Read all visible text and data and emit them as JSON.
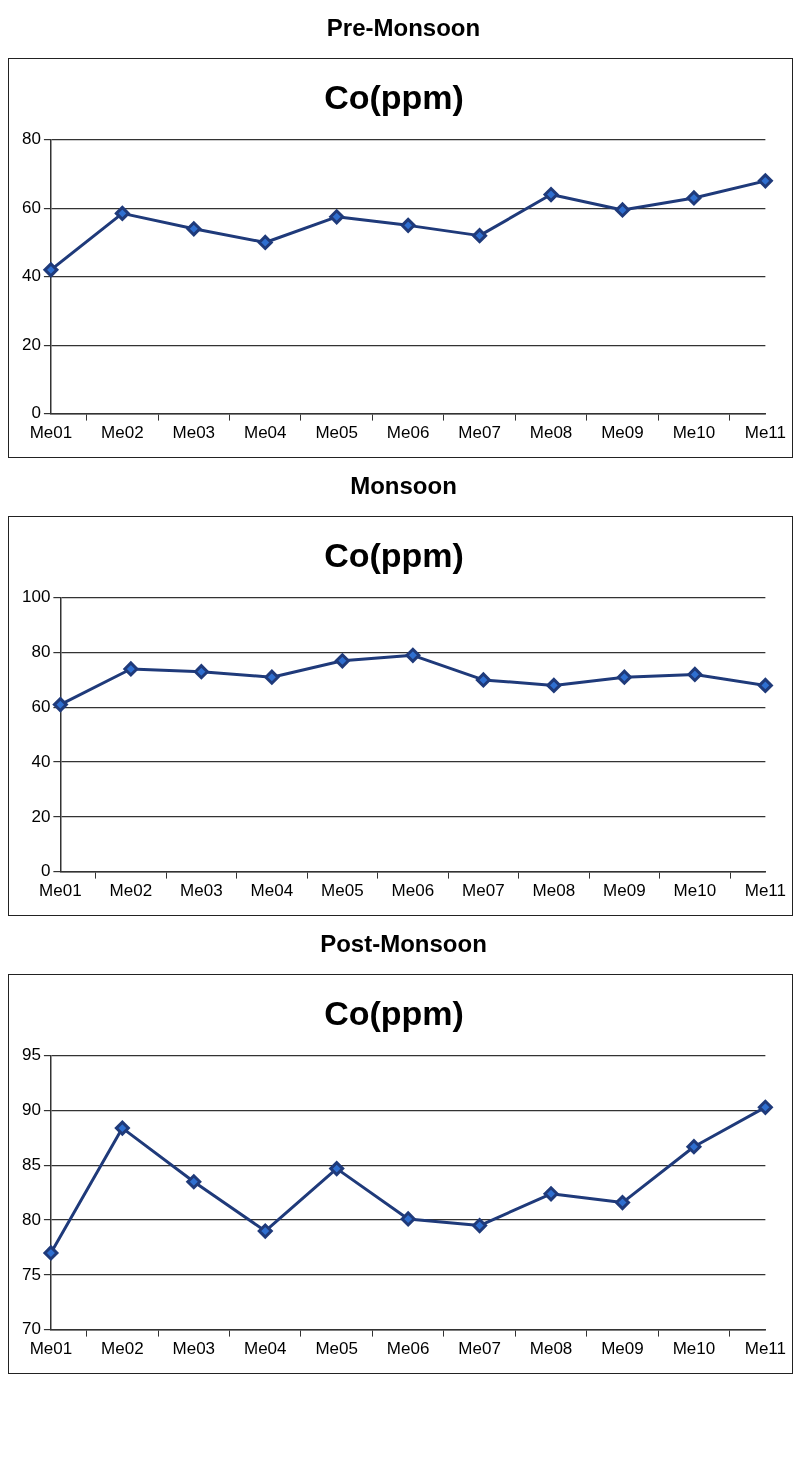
{
  "chart_data": [
    {
      "type": "line",
      "title": "Pre-Monsoon",
      "subtitle": "Co(ppm)",
      "categories": [
        "Me01",
        "Me02",
        "Me03",
        "Me04",
        "Me05",
        "Me06",
        "Me07",
        "Me08",
        "Me09",
        "Me10",
        "Me11"
      ],
      "series": [
        {
          "color": "#1f3a7a",
          "values": [
            42,
            58.5,
            54,
            50,
            57.5,
            55,
            52,
            64,
            59.5,
            63,
            68
          ]
        }
      ],
      "ylim": [
        0,
        80
      ],
      "yticks": [
        0,
        20,
        40,
        60,
        80
      ],
      "grid": "y",
      "legend": false,
      "marker": "diamond",
      "line_style": "solid"
    },
    {
      "type": "line",
      "title": "Monsoon",
      "subtitle": "Co(ppm)",
      "categories": [
        "Me01",
        "Me02",
        "Me03",
        "Me04",
        "Me05",
        "Me06",
        "Me07",
        "Me08",
        "Me09",
        "Me10",
        "Me11"
      ],
      "series": [
        {
          "color": "#1f3a7a",
          "values": [
            61,
            74,
            73,
            71,
            77,
            79,
            70,
            68,
            71,
            72,
            68
          ]
        }
      ],
      "ylim": [
        0,
        100
      ],
      "yticks": [
        0,
        20,
        40,
        60,
        80,
        100
      ],
      "grid": "y",
      "legend": false,
      "marker": "diamond",
      "line_style": "solid"
    },
    {
      "type": "line",
      "title": "Post-Monsoon",
      "subtitle": "Co(ppm)",
      "categories": [
        "Me01",
        "Me02",
        "Me03",
        "Me04",
        "Me05",
        "Me06",
        "Me07",
        "Me08",
        "Me09",
        "Me10",
        "Me11"
      ],
      "series": [
        {
          "color": "#1f3a7a",
          "values": [
            77,
            88.4,
            83.5,
            79,
            84.7,
            80.1,
            79.5,
            82.4,
            81.6,
            86.7,
            90.3
          ]
        }
      ],
      "ylim": [
        70,
        95
      ],
      "yticks": [
        70,
        75,
        80,
        85,
        90,
        95
      ],
      "grid": "y",
      "legend": false,
      "marker": "diamond",
      "line_style": "solid"
    }
  ]
}
